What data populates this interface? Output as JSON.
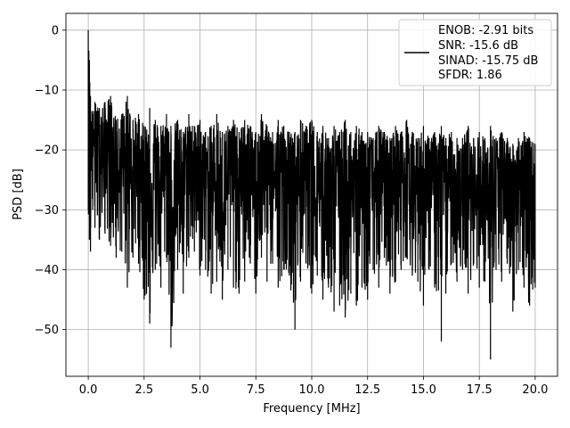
{
  "chart_data": {
    "type": "line",
    "title": "",
    "xlabel": "Frequency [MHz]",
    "ylabel": "PSD [dB]",
    "xlim": [
      -1.0,
      21.0
    ],
    "ylim": [
      -57.8,
      2.8
    ],
    "x_ticks": [
      0.0,
      2.5,
      5.0,
      7.5,
      10.0,
      12.5,
      15.0,
      17.5,
      20.0
    ],
    "x_tick_labels": [
      "0.0",
      "2.5",
      "5.0",
      "7.5",
      "10.0",
      "12.5",
      "15.0",
      "17.5",
      "20.0"
    ],
    "y_ticks": [
      0,
      -10,
      -20,
      -30,
      -40,
      -50
    ],
    "y_tick_labels": [
      "0",
      "−10",
      "−20",
      "−30",
      "−40",
      "−50"
    ],
    "grid": true,
    "legend_position": "top-right",
    "legend": {
      "lines": [
        "ENOB: -2.91 bits",
        "SNR: -15.6 dB",
        "SINAD: -15.75 dB",
        "SFDR: 1.86"
      ]
    },
    "series": [
      {
        "color": "#000000",
        "style": "dense noise-like spectrum; points below are approximate envelope samples (peak, floor) read from the figure",
        "x": [
          0.0,
          0.05,
          0.1,
          0.2,
          0.3,
          0.5,
          0.75,
          1.0,
          1.25,
          1.5,
          1.75,
          2.0,
          2.25,
          2.5,
          2.75,
          3.0,
          3.25,
          3.5,
          3.7,
          4.0,
          4.25,
          4.5,
          4.75,
          5.0,
          5.25,
          5.5,
          5.75,
          6.0,
          6.25,
          6.5,
          6.75,
          7.0,
          7.25,
          7.5,
          7.75,
          8.0,
          8.25,
          8.5,
          8.75,
          9.0,
          9.25,
          9.5,
          9.75,
          10.0,
          10.25,
          10.5,
          10.75,
          11.0,
          11.25,
          11.5,
          11.75,
          12.0,
          12.25,
          12.5,
          12.75,
          13.0,
          13.25,
          13.5,
          13.75,
          14.0,
          14.25,
          14.5,
          14.75,
          15.0,
          15.25,
          15.5,
          15.8,
          16.0,
          16.25,
          16.5,
          16.75,
          17.0,
          17.25,
          17.5,
          17.75,
          18.0,
          18.25,
          18.5,
          18.75,
          19.0,
          19.25,
          19.5,
          19.75,
          20.0
        ],
        "peak": [
          0.0,
          -5.0,
          -11.0,
          -14.0,
          -12.0,
          -13.0,
          -12.0,
          -11.0,
          -15.0,
          -14.0,
          -11.0,
          -15.0,
          -14.0,
          -16.0,
          -13.0,
          -15.0,
          -16.0,
          -14.0,
          -16.0,
          -15.0,
          -17.0,
          -14.0,
          -16.0,
          -15.0,
          -17.0,
          -16.0,
          -14.0,
          -17.0,
          -16.0,
          -15.0,
          -17.0,
          -15.0,
          -16.0,
          -17.0,
          -14.0,
          -16.0,
          -17.0,
          -15.0,
          -16.0,
          -17.0,
          -17.0,
          -15.0,
          -16.0,
          -15.0,
          -17.0,
          -16.0,
          -18.0,
          -16.0,
          -17.0,
          -15.0,
          -17.0,
          -16.0,
          -17.0,
          -17.0,
          -18.0,
          -16.0,
          -17.0,
          -18.0,
          -16.0,
          -17.0,
          -15.0,
          -17.0,
          -18.0,
          -16.0,
          -18.0,
          -17.0,
          -16.0,
          -18.0,
          -17.0,
          -18.0,
          -18.0,
          -16.0,
          -18.0,
          -17.0,
          -18.0,
          -16.0,
          -18.0,
          -17.0,
          -18.0,
          -19.0,
          -18.0,
          -17.0,
          -18.0,
          -19.0
        ],
        "floor": [
          -30.0,
          -35.0,
          -37.0,
          -30.0,
          -33.0,
          -35.0,
          -34.0,
          -36.0,
          -38.0,
          -37.0,
          -43.0,
          -38.0,
          -39.0,
          -45.0,
          -49.0,
          -40.0,
          -43.0,
          -38.0,
          -53.0,
          -40.0,
          -44.0,
          -38.0,
          -37.0,
          -41.0,
          -40.0,
          -44.0,
          -42.0,
          -45.0,
          -40.0,
          -43.0,
          -44.0,
          -42.0,
          -39.0,
          -44.0,
          -38.0,
          -42.0,
          -39.0,
          -43.0,
          -40.0,
          -41.0,
          -50.0,
          -42.0,
          -39.0,
          -44.0,
          -41.0,
          -45.0,
          -43.0,
          -47.0,
          -46.0,
          -48.0,
          -44.0,
          -46.0,
          -43.0,
          -45.0,
          -40.0,
          -43.0,
          -38.0,
          -44.0,
          -42.0,
          -40.0,
          -38.0,
          -41.0,
          -42.0,
          -46.0,
          -40.0,
          -43.0,
          -52.0,
          -44.0,
          -39.0,
          -42.0,
          -40.0,
          -44.0,
          -39.0,
          -43.0,
          -42.0,
          -55.0,
          -40.0,
          -42.0,
          -39.0,
          -47.0,
          -40.0,
          -43.0,
          -46.0,
          -43.0
        ]
      }
    ]
  }
}
